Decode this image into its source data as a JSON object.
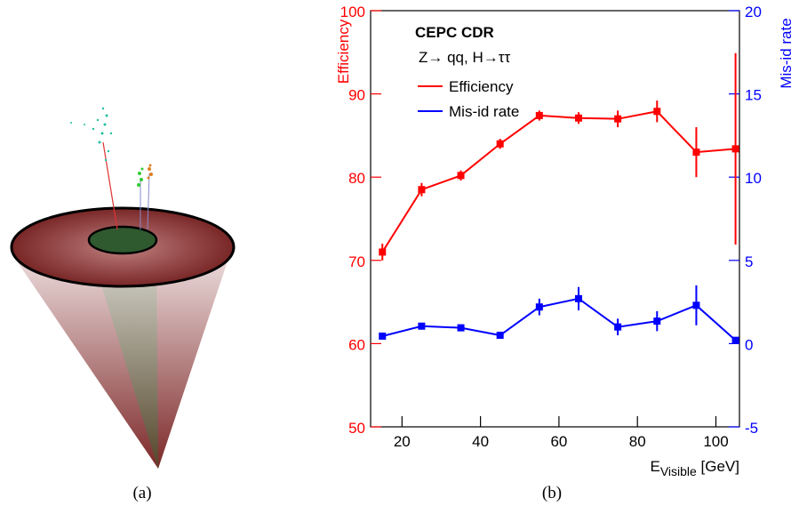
{
  "captions": {
    "a": "(a)",
    "b": "(b)"
  },
  "chart_data": {
    "type": "line",
    "annotations": [
      "CEPC CDR",
      "Z→ qq, H→ττ"
    ],
    "xlabel": {
      "main": "E",
      "sub": "Visible",
      "unit": " [GeV]"
    },
    "ylabel": "Efficiency",
    "y2label": "Mis-id rate",
    "x": [
      15,
      25,
      35,
      45,
      55,
      65,
      75,
      85,
      95,
      105
    ],
    "series": [
      {
        "name": "Efficiency",
        "color": "#ff0000",
        "values": [
          71.0,
          78.5,
          80.2,
          84.0,
          87.4,
          87.1,
          87.0,
          87.9,
          83.0,
          83.4
        ],
        "errors": [
          1.0,
          0.8,
          0.6,
          0.6,
          0.6,
          0.7,
          1.0,
          1.3,
          3.0,
          11.5
        ]
      },
      {
        "name": "Mis-id rate",
        "color": "#0000ff",
        "axis": "y2",
        "values": [
          0.45,
          1.05,
          0.95,
          0.5,
          2.2,
          2.7,
          1.0,
          1.35,
          2.3,
          0.2
        ],
        "errors": [
          0.1,
          0.15,
          0.15,
          0.1,
          0.5,
          0.7,
          0.5,
          0.6,
          1.2,
          0.1
        ]
      }
    ],
    "xlim": [
      12,
      106
    ],
    "xticks": [
      20,
      40,
      60,
      80,
      100
    ],
    "ylim": [
      50,
      100
    ],
    "yticks": [
      50,
      60,
      70,
      80,
      90,
      100
    ],
    "y2lim": [
      -5,
      20
    ],
    "y2ticks": [
      -5,
      0,
      5,
      10,
      15,
      20
    ],
    "legend": "upper left",
    "grid": false
  }
}
